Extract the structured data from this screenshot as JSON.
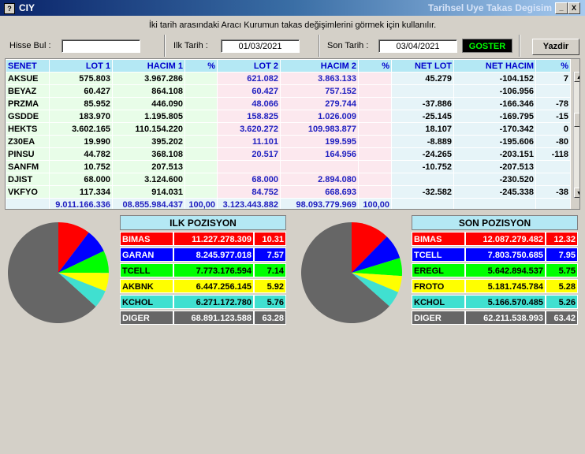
{
  "window": {
    "title_left": "CIY",
    "title_right": "Tarihsel Uye Takas Degisim",
    "min_label": "_",
    "close_label": "X",
    "sys_icon": "?"
  },
  "info_text": "İki tarih arasındaki  Aracı Kurumun takas değişimlerini görmek için kullanılır.",
  "controls": {
    "hisse_label": "Hisse Bul :",
    "hisse_value": "",
    "ilk_label": "Ilk Tarih :",
    "ilk_value": "01/03/2021",
    "son_label": "Son Tarih :",
    "son_value": "03/04/2021",
    "goster_label": "GOSTER",
    "yazdir_label": "Yazdir"
  },
  "grid": {
    "headers": [
      "SENET",
      "LOT 1",
      "HACIM 1",
      "%",
      "LOT 2",
      "HACIM 2",
      "%",
      "NET LOT",
      "NET HACIM",
      "%"
    ],
    "rows": [
      [
        "AKSUE",
        "575.803",
        "3.967.286",
        "",
        "621.082",
        "3.863.133",
        "",
        "45.279",
        "-104.152",
        "7"
      ],
      [
        "BEYAZ",
        "60.427",
        "864.108",
        "",
        "60.427",
        "757.152",
        "",
        "",
        "-106.956",
        ""
      ],
      [
        "PRZMA",
        "85.952",
        "446.090",
        "",
        "48.066",
        "279.744",
        "",
        "-37.886",
        "-166.346",
        "-78"
      ],
      [
        "GSDDE",
        "183.970",
        "1.195.805",
        "",
        "158.825",
        "1.026.009",
        "",
        "-25.145",
        "-169.795",
        "-15"
      ],
      [
        "HEKTS",
        "3.602.165",
        "110.154.220",
        "",
        "3.620.272",
        "109.983.877",
        "",
        "18.107",
        "-170.342",
        "0"
      ],
      [
        "Z30EA",
        "19.990",
        "395.202",
        "",
        "11.101",
        "199.595",
        "",
        "-8.889",
        "-195.606",
        "-80"
      ],
      [
        "PINSU",
        "44.782",
        "368.108",
        "",
        "20.517",
        "164.956",
        "",
        "-24.265",
        "-203.151",
        "-118"
      ],
      [
        "SANFM",
        "10.752",
        "207.513",
        "",
        "",
        "",
        "",
        "-10.752",
        "-207.513",
        ""
      ],
      [
        "DJIST",
        "68.000",
        "3.124.600",
        "",
        "68.000",
        "2.894.080",
        "",
        "",
        "-230.520",
        ""
      ],
      [
        "VKFYO",
        "117.334",
        "914.031",
        "",
        "84.752",
        "668.693",
        "",
        "-32.582",
        "-245.338",
        "-38"
      ]
    ],
    "totals": [
      "",
      "9.011.166.336",
      "08.855.984.437",
      "100,00",
      "3.123.443.882",
      "98.093.779.969",
      "100,00",
      "",
      "",
      ""
    ]
  },
  "ilk_pozisyon": {
    "title": "ILK POZISYON",
    "rows": [
      {
        "name": "BIMAS",
        "value": "11.227.278.309",
        "pct": "10.31",
        "pct_num": 10.31,
        "bg": "#ff0000",
        "fg": "#ffffff"
      },
      {
        "name": "GARAN",
        "value": "8.245.977.018",
        "pct": "7.57",
        "pct_num": 7.57,
        "bg": "#0000ff",
        "fg": "#ffffff"
      },
      {
        "name": "TCELL",
        "value": "7.773.176.594",
        "pct": "7.14",
        "pct_num": 7.14,
        "bg": "#00ff00",
        "fg": "#000000"
      },
      {
        "name": "AKBNK",
        "value": "6.447.256.145",
        "pct": "5.92",
        "pct_num": 5.92,
        "bg": "#ffff00",
        "fg": "#000000"
      },
      {
        "name": "KCHOL",
        "value": "6.271.172.780",
        "pct": "5.76",
        "pct_num": 5.76,
        "bg": "#40e0d0",
        "fg": "#000000"
      },
      {
        "name": "DIGER",
        "value": "68.891.123.588",
        "pct": "63.28",
        "pct_num": 63.28,
        "bg": "#666666",
        "fg": "#ffffff"
      }
    ]
  },
  "son_pozisyon": {
    "title": "SON POZISYON",
    "rows": [
      {
        "name": "BIMAS",
        "value": "12.087.279.482",
        "pct": "12.32",
        "pct_num": 12.32,
        "bg": "#ff0000",
        "fg": "#ffffff"
      },
      {
        "name": "TCELL",
        "value": "7.803.750.685",
        "pct": "7.95",
        "pct_num": 7.95,
        "bg": "#0000ff",
        "fg": "#ffffff"
      },
      {
        "name": "EREGL",
        "value": "5.642.894.537",
        "pct": "5.75",
        "pct_num": 5.75,
        "bg": "#00ff00",
        "fg": "#000000"
      },
      {
        "name": "FROTO",
        "value": "5.181.745.784",
        "pct": "5.28",
        "pct_num": 5.28,
        "bg": "#ffff00",
        "fg": "#000000"
      },
      {
        "name": "KCHOL",
        "value": "5.166.570.485",
        "pct": "5.26",
        "pct_num": 5.26,
        "bg": "#40e0d0",
        "fg": "#000000"
      },
      {
        "name": "DIGER",
        "value": "62.211.538.993",
        "pct": "63.42",
        "pct_num": 63.42,
        "bg": "#666666",
        "fg": "#ffffff"
      }
    ]
  },
  "chart_data": [
    {
      "type": "pie",
      "categories": [
        "BIMAS",
        "GARAN",
        "TCELL",
        "AKBNK",
        "KCHOL",
        "DIGER"
      ],
      "values": [
        10.31,
        7.57,
        7.14,
        5.92,
        5.76,
        63.28
      ],
      "colors": [
        "#ff0000",
        "#0000ff",
        "#00ff00",
        "#ffff00",
        "#40e0d0",
        "#666666"
      ]
    },
    {
      "type": "pie",
      "categories": [
        "BIMAS",
        "TCELL",
        "EREGL",
        "FROTO",
        "KCHOL",
        "DIGER"
      ],
      "values": [
        12.32,
        7.95,
        5.75,
        5.28,
        5.26,
        63.42
      ],
      "colors": [
        "#ff0000",
        "#0000ff",
        "#00ff00",
        "#ffff00",
        "#40e0d0",
        "#666666"
      ]
    }
  ]
}
